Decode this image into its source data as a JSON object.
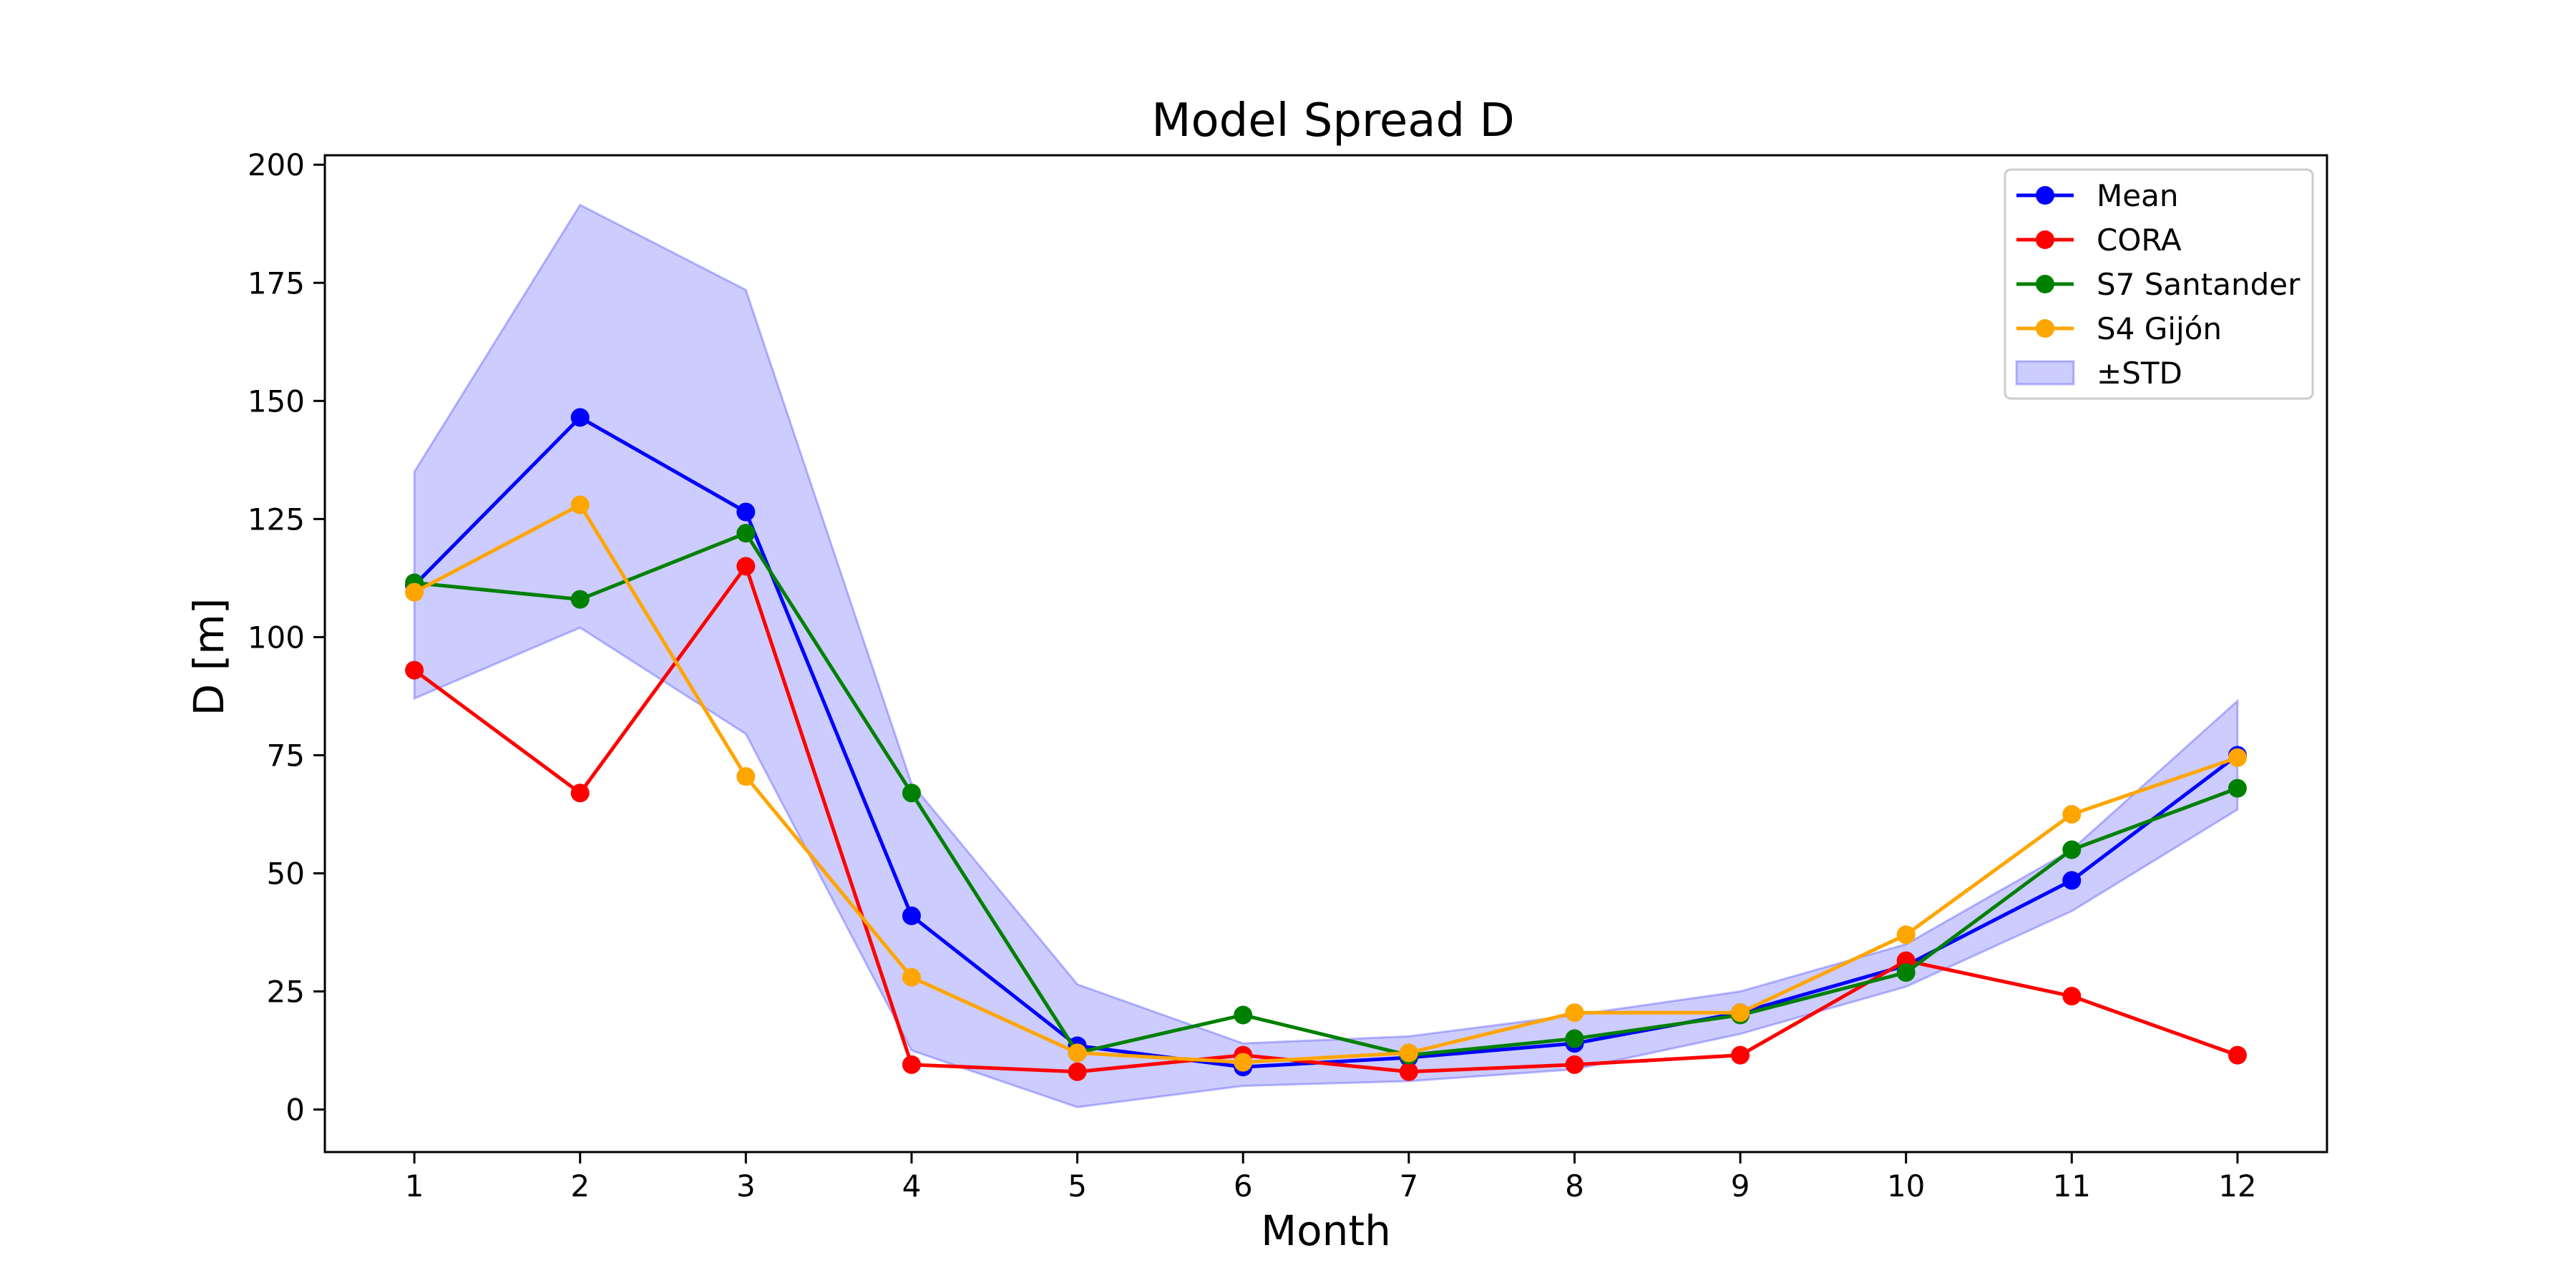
{
  "chart_data": {
    "type": "line",
    "title": "Model Spread D",
    "xlabel": "Month",
    "ylabel": "D [m]",
    "x": [
      1,
      2,
      3,
      4,
      5,
      6,
      7,
      8,
      9,
      10,
      11,
      12
    ],
    "xlim": [
      0.46,
      12.54
    ],
    "ylim": [
      -9,
      202
    ],
    "yticks": [
      0,
      25,
      50,
      75,
      100,
      125,
      150,
      175,
      200
    ],
    "grid": false,
    "legend_position": "top-right",
    "series": [
      {
        "name": "Mean",
        "color": "#0000ff",
        "values": [
          111,
          146.5,
          126.5,
          41,
          13.5,
          9,
          11,
          14,
          20.5,
          30.5,
          48.5,
          75
        ]
      },
      {
        "name": "CORA",
        "color": "#ff0000",
        "values": [
          93,
          67,
          115,
          9.5,
          8,
          11.5,
          8,
          9.5,
          11.5,
          31.5,
          24,
          11.5
        ]
      },
      {
        "name": "S7 Santander",
        "color": "#008000",
        "values": [
          111.5,
          108,
          122,
          67,
          12,
          20,
          11.5,
          15,
          20,
          29,
          55,
          68
        ]
      },
      {
        "name": "S4 Gijón",
        "color": "#ffa500",
        "values": [
          109.5,
          128,
          70.5,
          28,
          12,
          10,
          12,
          20.5,
          20.5,
          37,
          62.5,
          74.5
        ]
      }
    ],
    "band": {
      "name": "±STD",
      "color": "#0000ff",
      "upper": [
        135,
        191.5,
        173.5,
        69,
        26.5,
        14,
        15.5,
        20,
        25,
        35,
        55,
        86.5
      ],
      "lower": [
        87,
        102,
        79.5,
        12.5,
        0.5,
        5,
        6,
        8.5,
        16,
        26,
        42,
        63.5
      ]
    }
  }
}
